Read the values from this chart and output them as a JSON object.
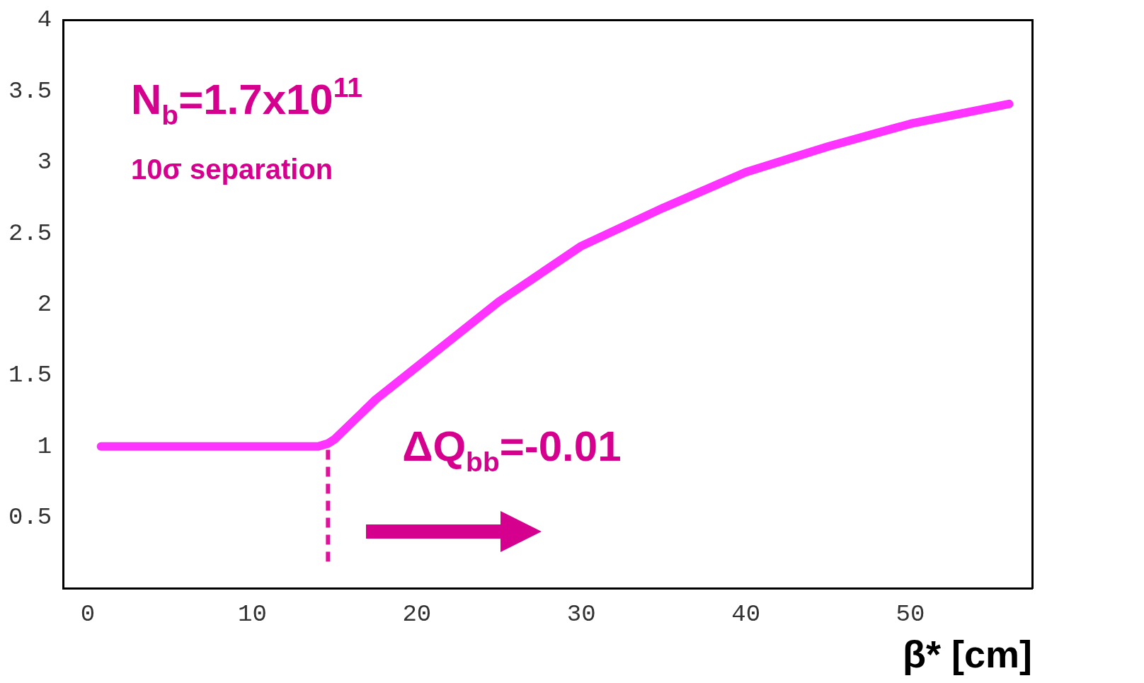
{
  "chart_data": {
    "type": "line",
    "xlabel": "β* [cm]",
    "x": [
      0.8,
      5,
      10,
      14,
      14.6,
      15,
      17.5,
      20,
      25,
      30,
      35,
      40,
      45,
      50,
      56
    ],
    "series": [
      {
        "color": "#ff33ff",
        "values": [
          1,
          1,
          1,
          1,
          1.02,
          1.05,
          1.33,
          1.56,
          2.02,
          2.41,
          2.68,
          2.93,
          3.11,
          3.27,
          3.41
        ]
      }
    ],
    "xlim": [
      -1.5,
      57.4
    ],
    "ylim": [
      0,
      4
    ],
    "xticks": [
      0,
      10,
      20,
      30,
      40,
      50
    ],
    "yticks": [
      0.5,
      1,
      1.5,
      2,
      2.5,
      3,
      3.5,
      4
    ],
    "grid": false,
    "legend": false,
    "marker": "none",
    "line_style": "solid",
    "ref_lines": [
      {
        "axis": "x",
        "value": 14.6,
        "color": "#e0119a",
        "line_style": "dashed"
      }
    ],
    "annotations": [
      "N$_{b}$=1.7x10$^{11}$",
      "10σ separation",
      "ΔQ$_{bb}$=-0.01"
    ]
  }
}
